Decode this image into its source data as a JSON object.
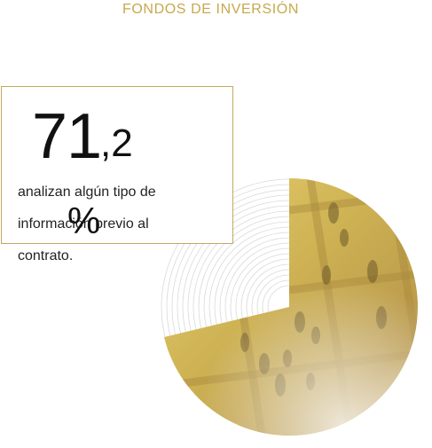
{
  "header": {
    "section_title": "FONDOS DE INVERSIÓN"
  },
  "stat": {
    "integer": "71",
    "decimal": ",2",
    "unit": "%",
    "value": 71.2,
    "description": "analizan algún tipo de información previo al contrato."
  },
  "graphic": {
    "icon": "pie-chart-photo-icon",
    "accent_color": "#c8a84c",
    "border_color": "#c6a662"
  }
}
